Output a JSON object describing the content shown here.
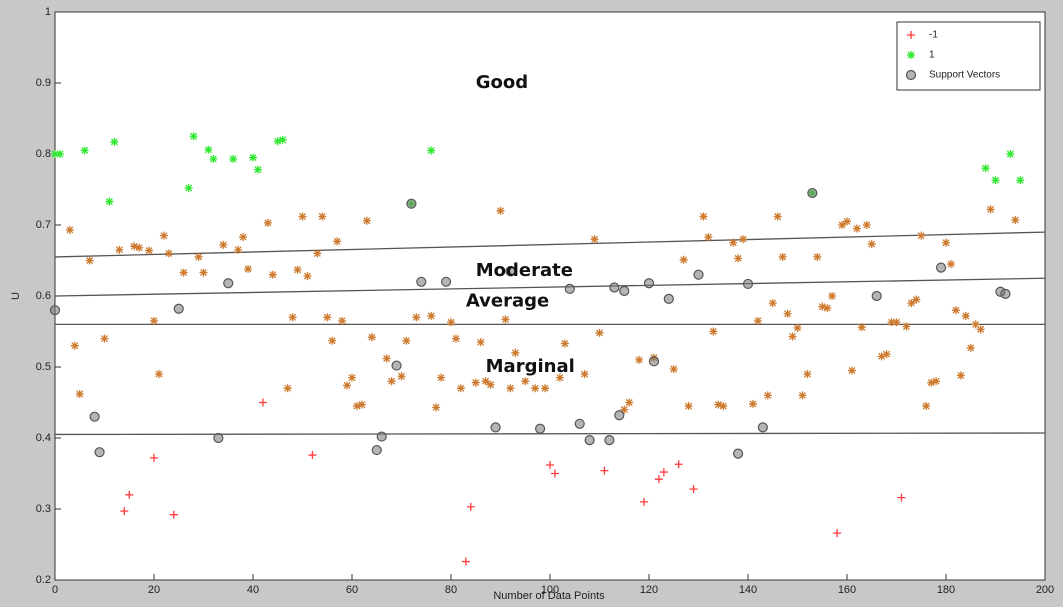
{
  "chart_data": {
    "type": "scatter",
    "xlabel": "Number of Data Points",
    "ylabel": "U",
    "xlim": [
      0,
      200
    ],
    "ylim": [
      0.2,
      1
    ],
    "xticks": [
      0,
      20,
      40,
      60,
      80,
      100,
      120,
      140,
      160,
      180,
      200
    ],
    "yticks": [
      0.2,
      0.3,
      0.4,
      0.5,
      0.6,
      0.7,
      0.8,
      0.9,
      1
    ],
    "legend": "upper right",
    "annotations": [
      {
        "text": "Good",
        "x": 85,
        "y": 0.9
      },
      {
        "text": "Moderate",
        "x": 85,
        "y": 0.635
      },
      {
        "text": "Average",
        "x": 83,
        "y": 0.592
      },
      {
        "text": "Marginal",
        "x": 87,
        "y": 0.5
      }
    ],
    "lines": [
      {
        "x": [
          0,
          200
        ],
        "y": [
          0.655,
          0.69
        ]
      },
      {
        "x": [
          0,
          200
        ],
        "y": [
          0.6,
          0.625
        ]
      },
      {
        "x": [
          0,
          200
        ],
        "y": [
          0.56,
          0.56
        ]
      },
      {
        "x": [
          0,
          200
        ],
        "y": [
          0.405,
          0.407
        ]
      }
    ],
    "series": [
      {
        "color": "#cd7a2e",
        "marker": "star",
        "x": [
          3,
          4,
          5,
          7,
          10,
          13,
          16,
          17,
          19,
          20,
          21,
          22,
          23,
          26,
          29,
          30,
          34,
          37,
          38,
          39,
          43,
          44,
          47,
          48,
          49,
          50,
          51,
          53,
          54,
          55,
          56,
          57,
          58,
          59,
          60,
          61,
          62,
          63,
          64,
          67,
          68,
          70,
          71,
          73,
          76,
          77,
          78,
          80,
          81,
          82,
          85,
          86,
          87,
          88,
          90,
          91,
          92,
          93,
          95,
          97,
          99,
          102,
          103,
          107,
          109,
          110,
          115,
          116,
          118,
          121,
          125,
          127,
          128,
          131,
          132,
          133,
          134,
          135,
          137,
          138,
          139,
          141,
          142,
          144,
          145,
          146,
          147,
          148,
          149,
          150,
          151,
          152,
          154,
          155,
          156,
          157,
          159,
          160,
          161,
          162,
          163,
          164,
          165,
          167,
          168,
          169,
          170,
          172,
          173,
          174,
          175,
          176,
          177,
          178,
          180,
          181,
          182,
          183,
          184,
          185,
          186,
          187,
          189,
          194
        ],
        "values": [
          0.693,
          0.53,
          0.462,
          0.65,
          0.54,
          0.665,
          0.67,
          0.668,
          0.664,
          0.565,
          0.49,
          0.685,
          0.66,
          0.633,
          0.655,
          0.633,
          0.672,
          0.665,
          0.683,
          0.638,
          0.703,
          0.63,
          0.47,
          0.57,
          0.637,
          0.712,
          0.628,
          0.66,
          0.712,
          0.57,
          0.537,
          0.677,
          0.565,
          0.474,
          0.485,
          0.445,
          0.447,
          0.706,
          0.542,
          0.512,
          0.48,
          0.487,
          0.537,
          0.57,
          0.572,
          0.443,
          0.485,
          0.563,
          0.54,
          0.47,
          0.478,
          0.535,
          0.48,
          0.475,
          0.72,
          0.567,
          0.47,
          0.52,
          0.48,
          0.47,
          0.47,
          0.485,
          0.533,
          0.49,
          0.68,
          0.548,
          0.44,
          0.45,
          0.51,
          0.513,
          0.497,
          0.651,
          0.445,
          0.712,
          0.683,
          0.55,
          0.447,
          0.445,
          0.675,
          0.653,
          0.68,
          0.448,
          0.565,
          0.46,
          0.59,
          0.712,
          0.655,
          0.575,
          0.543,
          0.555,
          0.46,
          0.49,
          0.655,
          0.585,
          0.583,
          0.6,
          0.7,
          0.705,
          0.495,
          0.695,
          0.556,
          0.7,
          0.673,
          0.515,
          0.518,
          0.563,
          0.563,
          0.557,
          0.59,
          0.595,
          0.685,
          0.445,
          0.478,
          0.48,
          0.675,
          0.645,
          0.58,
          0.488,
          0.572,
          0.527,
          0.56,
          0.553,
          0.722,
          0.707
        ]
      },
      {
        "name": "-1",
        "color": "#ff3b3b",
        "marker": "plus",
        "x": [
          14,
          15,
          20,
          24,
          42,
          52,
          83,
          84,
          100,
          101,
          111,
          119,
          122,
          123,
          126,
          129,
          158,
          171
        ],
        "values": [
          0.297,
          0.32,
          0.372,
          0.292,
          0.45,
          0.376,
          0.226,
          0.303,
          0.362,
          0.35,
          0.354,
          0.31,
          0.342,
          0.352,
          0.363,
          0.328,
          0.266,
          0.316
        ]
      },
      {
        "name": "1",
        "color": "#2ee82e",
        "marker": "star",
        "x": [
          0,
          1,
          6,
          11,
          12,
          27,
          28,
          31,
          32,
          36,
          40,
          41,
          45,
          46,
          72,
          76,
          153,
          188,
          190,
          193,
          195
        ],
        "values": [
          0.8,
          0.8,
          0.805,
          0.733,
          0.817,
          0.752,
          0.825,
          0.806,
          0.793,
          0.793,
          0.795,
          0.778,
          0.818,
          0.82,
          0.73,
          0.805,
          0.745,
          0.78,
          0.763,
          0.8,
          0.763
        ]
      },
      {
        "name": "Support Vectors",
        "color": "#555555",
        "marker": "circle",
        "x": [
          0,
          8,
          9,
          25,
          33,
          35,
          65,
          66,
          69,
          72,
          74,
          79,
          89,
          92,
          98,
          104,
          106,
          108,
          112,
          113,
          114,
          115,
          120,
          121,
          124,
          130,
          138,
          140,
          143,
          153,
          166,
          179,
          191,
          192
        ],
        "values": [
          0.58,
          0.43,
          0.38,
          0.582,
          0.4,
          0.618,
          0.383,
          0.402,
          0.502,
          0.73,
          0.62,
          0.62,
          0.415,
          0.635,
          0.413,
          0.61,
          0.42,
          0.397,
          0.397,
          0.612,
          0.432,
          0.607,
          0.618,
          0.508,
          0.596,
          0.63,
          0.378,
          0.617,
          0.415,
          0.745,
          0.6,
          0.64,
          0.606,
          0.603
        ]
      }
    ]
  }
}
